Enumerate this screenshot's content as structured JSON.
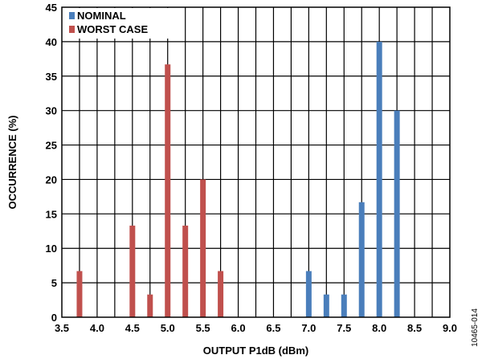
{
  "chart_data": {
    "type": "bar",
    "xlabel": "OUTPUT P1dB (dBm)",
    "ylabel": "OCCURRENCE (%)",
    "xlim": [
      3.5,
      9.0
    ],
    "ylim": [
      0,
      45
    ],
    "x_ticks": [
      "3.5",
      "4.0",
      "4.5",
      "5.0",
      "5.5",
      "6.0",
      "6.5",
      "7.0",
      "7.5",
      "8.0",
      "8.5",
      "9.0"
    ],
    "y_ticks": [
      "0",
      "5",
      "10",
      "15",
      "20",
      "25",
      "30",
      "35",
      "40",
      "45"
    ],
    "grid": true,
    "legend_position": "top-left",
    "series": [
      {
        "name": "NOMINAL",
        "color": "#4a7ebb",
        "points": [
          {
            "x": 7.0,
            "y": 6.7
          },
          {
            "x": 7.25,
            "y": 3.3
          },
          {
            "x": 7.5,
            "y": 3.3
          },
          {
            "x": 7.75,
            "y": 16.7
          },
          {
            "x": 8.0,
            "y": 40.0
          },
          {
            "x": 8.25,
            "y": 30.0
          }
        ]
      },
      {
        "name": "WORST CASE",
        "color": "#c0504d",
        "points": [
          {
            "x": 3.75,
            "y": 6.7
          },
          {
            "x": 4.5,
            "y": 13.3
          },
          {
            "x": 4.75,
            "y": 3.3
          },
          {
            "x": 5.0,
            "y": 36.7
          },
          {
            "x": 5.25,
            "y": 13.3
          },
          {
            "x": 5.5,
            "y": 20.0
          },
          {
            "x": 5.75,
            "y": 6.7
          }
        ]
      }
    ]
  },
  "figure_code": "10465-014"
}
